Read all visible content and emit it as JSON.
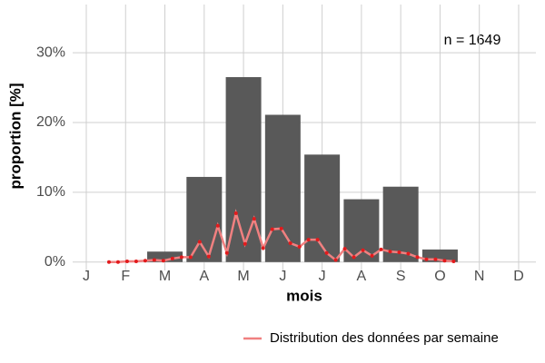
{
  "chart_data": {
    "type": "bar",
    "annotation": "n = 1649",
    "xlabel": "mois",
    "ylabel": "proportion [%]",
    "categories": [
      "J",
      "F",
      "M",
      "A",
      "M",
      "J",
      "J",
      "A",
      "S",
      "O",
      "N",
      "D"
    ],
    "values": [
      0,
      0,
      1.5,
      12.2,
      26.5,
      21.1,
      15.4,
      9.0,
      10.8,
      1.8,
      0,
      0
    ],
    "color": "#595959",
    "ylim": [
      -1.2,
      36.9
    ],
    "yticks": [
      {
        "value": 0,
        "label": "0%"
      },
      {
        "value": 10,
        "label": "10%"
      },
      {
        "value": 20,
        "label": "20%"
      },
      {
        "value": 30,
        "label": "30%"
      }
    ],
    "grid": true,
    "legend": "bottom-right",
    "line": {
      "name": "Distribution des données par semaine",
      "color": "#f08080",
      "point_color": "#e31a1c",
      "x": [
        3,
        4,
        5,
        6,
        7,
        8,
        9,
        10,
        11,
        12,
        13,
        14,
        15,
        16,
        17,
        18,
        19,
        20,
        21,
        22,
        23,
        24,
        25,
        26,
        27,
        28,
        29,
        30,
        31,
        32,
        33,
        34,
        35,
        36,
        37,
        38,
        39,
        40,
        41
      ],
      "values": [
        0,
        0,
        0.1,
        0.1,
        0.2,
        0.3,
        0.2,
        0.5,
        0.7,
        0.7,
        2.9,
        0.8,
        5.2,
        1.3,
        7.0,
        2.6,
        6.2,
        2.0,
        4.7,
        4.8,
        2.7,
        2.2,
        3.2,
        3.2,
        1.3,
        0.3,
        1.9,
        0.7,
        1.7,
        0.9,
        1.8,
        1.5,
        1.4,
        1.2,
        0.7,
        0.4,
        0.4,
        0.2,
        0.1
      ]
    }
  }
}
